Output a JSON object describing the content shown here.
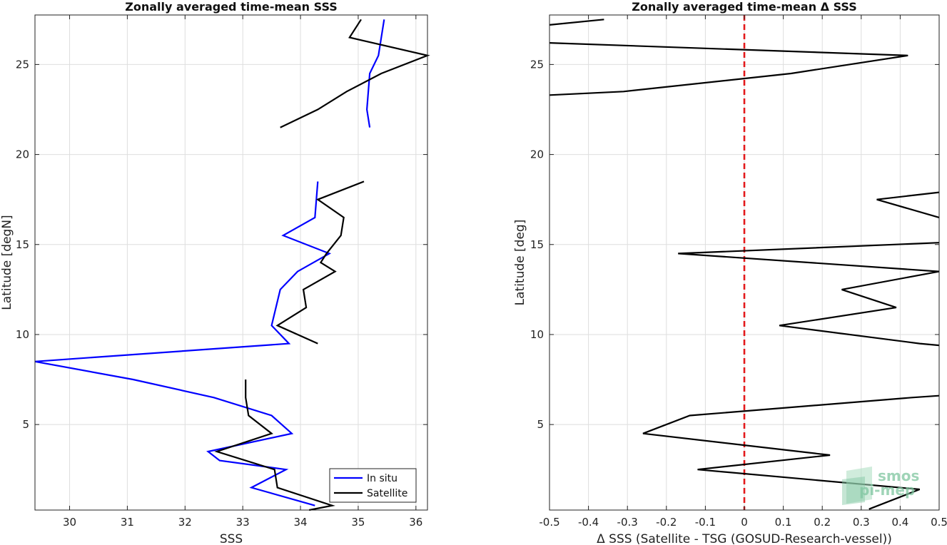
{
  "chart_data": [
    {
      "type": "line",
      "title": "Zonally averaged time-mean SSS",
      "xlabel": "SSS",
      "ylabel": "Latitude [degN]",
      "xlim": [
        29.4,
        36.2
      ],
      "ylim": [
        0.25,
        27.75
      ],
      "xticks": [
        30,
        31,
        32,
        33,
        34,
        35,
        36
      ],
      "yticks": [
        5,
        10,
        15,
        20,
        25
      ],
      "grid": true,
      "legend_position": "bottom-right",
      "series": [
        {
          "name": "In situ",
          "color": "#0000ff",
          "segments": [
            {
              "x": [
                34.25,
                33.15,
                33.75,
                32.6,
                32.4,
                33.85,
                33.5,
                32.5,
                31.1,
                29.4,
                33.8,
                33.5,
                33.65,
                33.95,
                34.5,
                33.7,
                34.25,
                34.3
              ],
              "y": [
                0.5,
                1.5,
                2.5,
                3.0,
                3.5,
                4.5,
                5.5,
                6.5,
                7.5,
                8.5,
                9.5,
                10.5,
                12.5,
                13.5,
                14.5,
                15.5,
                16.5,
                18.5
              ]
            },
            {
              "x": [
                35.2,
                35.15,
                35.2,
                35.35,
                35.4,
                35.45
              ],
              "y": [
                21.5,
                22.5,
                24.5,
                25.5,
                26.5,
                27.5
              ]
            }
          ]
        },
        {
          "name": "Satellite",
          "color": "#000000",
          "segments": [
            {
              "x": [
                34.15,
                34.55,
                33.6,
                33.55,
                32.55,
                33.5,
                33.1,
                33.05,
                33.05
              ],
              "y": [
                0.25,
                0.5,
                1.5,
                2.5,
                3.5,
                4.5,
                5.5,
                6.5,
                7.5
              ]
            },
            {
              "x": [
                34.3,
                33.6,
                34.1,
                34.05,
                34.6,
                34.35,
                34.45,
                34.7,
                34.75,
                34.3,
                35.1
              ],
              "y": [
                9.5,
                10.5,
                11.5,
                12.5,
                13.5,
                14.0,
                14.5,
                15.5,
                16.5,
                17.5,
                18.5
              ]
            },
            {
              "x": [
                33.65,
                34.3,
                34.8,
                35.4,
                36.2,
                34.85,
                35.05
              ],
              "y": [
                21.5,
                22.5,
                23.5,
                24.5,
                25.5,
                26.5,
                27.5
              ]
            }
          ]
        }
      ]
    },
    {
      "type": "line",
      "title": "Zonally averaged time-mean Δ SSS",
      "xlabel": "Δ SSS (Satellite - TSG (GOSUD-Research-vessel))",
      "ylabel": "Latitude [deg]",
      "xlim": [
        -0.5,
        0.5
      ],
      "ylim": [
        0.25,
        27.75
      ],
      "xticks": [
        -0.5,
        -0.4,
        -0.3,
        -0.2,
        -0.1,
        0,
        0.1,
        0.2,
        0.3,
        0.4,
        0.5
      ],
      "xticklabels": [
        "-0.5",
        "-0.4",
        "-0.3",
        "-0.2",
        "-0.1",
        "0",
        "0.1",
        "0.2",
        "0.3",
        "0.4",
        "0.5"
      ],
      "yticks": [
        5,
        10,
        15,
        20,
        25
      ],
      "grid": true,
      "reference_line": {
        "x": 0,
        "color": "#e31a1c",
        "style": "dashed"
      },
      "series": [
        {
          "color": "#000000",
          "segments": [
            {
              "x": [
                0.32,
                0.45,
                -0.12,
                0.22,
                -0.26,
                -0.14,
                0.43,
                0.5
              ],
              "y": [
                0.3,
                1.4,
                2.5,
                3.3,
                4.5,
                5.5,
                6.5,
                6.6
              ]
            },
            {
              "x": [
                0.5,
                0.45,
                0.09,
                0.39,
                0.25,
                0.5
              ],
              "y": [
                9.4,
                9.5,
                10.5,
                11.5,
                12.5,
                13.5
              ]
            },
            {
              "x": [
                0.5,
                -0.17,
                0.5
              ],
              "y": [
                13.5,
                14.5,
                15.1
              ]
            },
            {
              "x": [
                0.5,
                0.34,
                0.5
              ],
              "y": [
                16.5,
                17.5,
                17.9
              ]
            },
            {
              "x": [
                -0.5,
                -0.31,
                0.12,
                0.42,
                -0.5
              ],
              "y": [
                23.3,
                23.5,
                24.5,
                25.5,
                26.2
              ]
            },
            {
              "x": [
                -0.5,
                -0.36
              ],
              "y": [
                27.2,
                27.5
              ]
            }
          ]
        }
      ]
    }
  ],
  "watermark": {
    "line1": "smos",
    "line2": "pi-mep"
  },
  "colors": {
    "insitu": "#0000ff",
    "satellite": "#000000",
    "zero_line": "#e31a1c",
    "watermark": "#7fc6a0"
  }
}
